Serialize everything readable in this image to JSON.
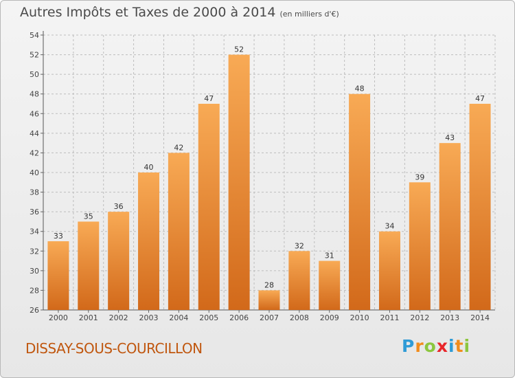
{
  "title": {
    "main": "Autres Impôts et Taxes de 2000 à 2014",
    "unit": "(en milliers d'€)"
  },
  "commune": "DISSAY-SOUS-COURCILLON",
  "logo": {
    "text": "Proxiti",
    "letters": [
      {
        "char": "P",
        "color": "#2f9bd6"
      },
      {
        "char": "r",
        "color": "#f28c1c"
      },
      {
        "char": "o",
        "color": "#8cc63f"
      },
      {
        "char": "x",
        "color": "#e8262a"
      },
      {
        "char": "i",
        "color": "#2f9bd6"
      },
      {
        "char": "t",
        "color": "#f28c1c"
      },
      {
        "char": "i",
        "color": "#8cc63f"
      }
    ]
  },
  "colors": {
    "bar_light": "#f8aa55",
    "bar_dark": "#d2691a",
    "accent_text": "#c0570f",
    "grid": "#bdbdbd"
  },
  "chart_data": {
    "type": "bar",
    "categories": [
      "2000",
      "2001",
      "2002",
      "2003",
      "2004",
      "2005",
      "2006",
      "2007",
      "2008",
      "2009",
      "2010",
      "2011",
      "2012",
      "2013",
      "2014"
    ],
    "values": [
      33,
      35,
      36,
      40,
      42,
      47,
      52,
      28,
      32,
      31,
      48,
      34,
      39,
      43,
      47
    ],
    "title": "Autres Impôts et Taxes de 2000 à 2014",
    "subtitle": "(en milliers d'€)",
    "ylim": [
      26,
      54
    ],
    "yticks": [
      26,
      28,
      30,
      32,
      34,
      36,
      38,
      40,
      42,
      44,
      46,
      48,
      50,
      52,
      54
    ],
    "grid": true,
    "legend": "none"
  }
}
